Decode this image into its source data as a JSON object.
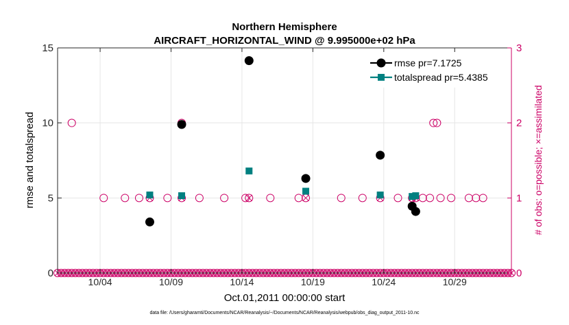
{
  "chart_data": {
    "type": "scatter",
    "title": "Northern Hemisphere",
    "subtitle": "AIRCRAFT_HORIZONTAL_WIND @ 9.995000e+02 hPa",
    "xlabel": "Oct.01,2011 00:00:00 start",
    "ylabel": "rmse and totalspread",
    "y2label": "# of obs: o=possible; ×=assimilated",
    "footnote": "data file: /Users/gharamti/Documents/NCAR/Reanalysis/~/Documents/NCAR/Reanalysis/webpub/obs_diag_output_2011-10.nc",
    "xlim": [
      1,
      33
    ],
    "ylim": [
      0,
      15
    ],
    "y2lim": [
      0,
      3
    ],
    "x_ticks": [
      4,
      9,
      14,
      19,
      24,
      29
    ],
    "x_tick_labels": [
      "10/04",
      "10/09",
      "10/14",
      "10/19",
      "10/24",
      "10/29"
    ],
    "y_ticks": [
      0,
      5,
      10,
      15
    ],
    "y_tick_labels": [
      "0",
      "5",
      "10",
      "15"
    ],
    "y2_ticks": [
      0,
      1,
      2,
      3
    ],
    "y2_tick_labels": [
      "0",
      "1",
      "2",
      "3"
    ],
    "grid": true,
    "legend": "top-right",
    "colors": {
      "rmse": "#000000",
      "totalspread": "#008080",
      "obs": "#cc0066",
      "grid": "#e6e6e6"
    },
    "series": [
      {
        "name": "rmse pr=7.1725",
        "x": [
          7.5,
          9.75,
          14.5,
          18.5,
          23.75,
          26,
          26.25
        ],
        "values": [
          3.4,
          9.9,
          14.15,
          6.3,
          7.85,
          4.45,
          4.1
        ]
      },
      {
        "name": "totalspread pr=5.4385",
        "x": [
          7.5,
          9.75,
          14.5,
          18.5,
          23.75,
          26,
          26.25
        ],
        "values": [
          5.2,
          5.15,
          6.8,
          5.45,
          5.2,
          5.1,
          5.15
        ]
      }
    ],
    "obs_possible": {
      "x": [
        2,
        4.25,
        5.75,
        6.75,
        7.5,
        8.75,
        9.75,
        9.75,
        11,
        12.75,
        14.25,
        14.5,
        16,
        18,
        18.5,
        21,
        22.5,
        23.75,
        25,
        26,
        26.25,
        26.75,
        27.25,
        27.5,
        27.75,
        28,
        28.75,
        30,
        30.5,
        31
      ],
      "values": [
        2,
        1,
        1,
        1,
        1,
        1,
        1,
        2,
        1,
        1,
        1,
        1,
        1,
        1,
        1,
        1,
        1,
        1,
        1,
        1,
        1,
        1,
        1,
        2,
        2,
        1,
        1,
        1,
        1,
        1
      ]
    },
    "obs_assimilated": {
      "x": [
        7.5,
        9.75,
        14.5,
        18.5,
        23.75,
        26,
        26.25
      ],
      "values": [
        1,
        1,
        1,
        1,
        1,
        1,
        1
      ]
    },
    "zero_markers": {
      "start": 1,
      "end": 33,
      "step": 0.25
    }
  }
}
